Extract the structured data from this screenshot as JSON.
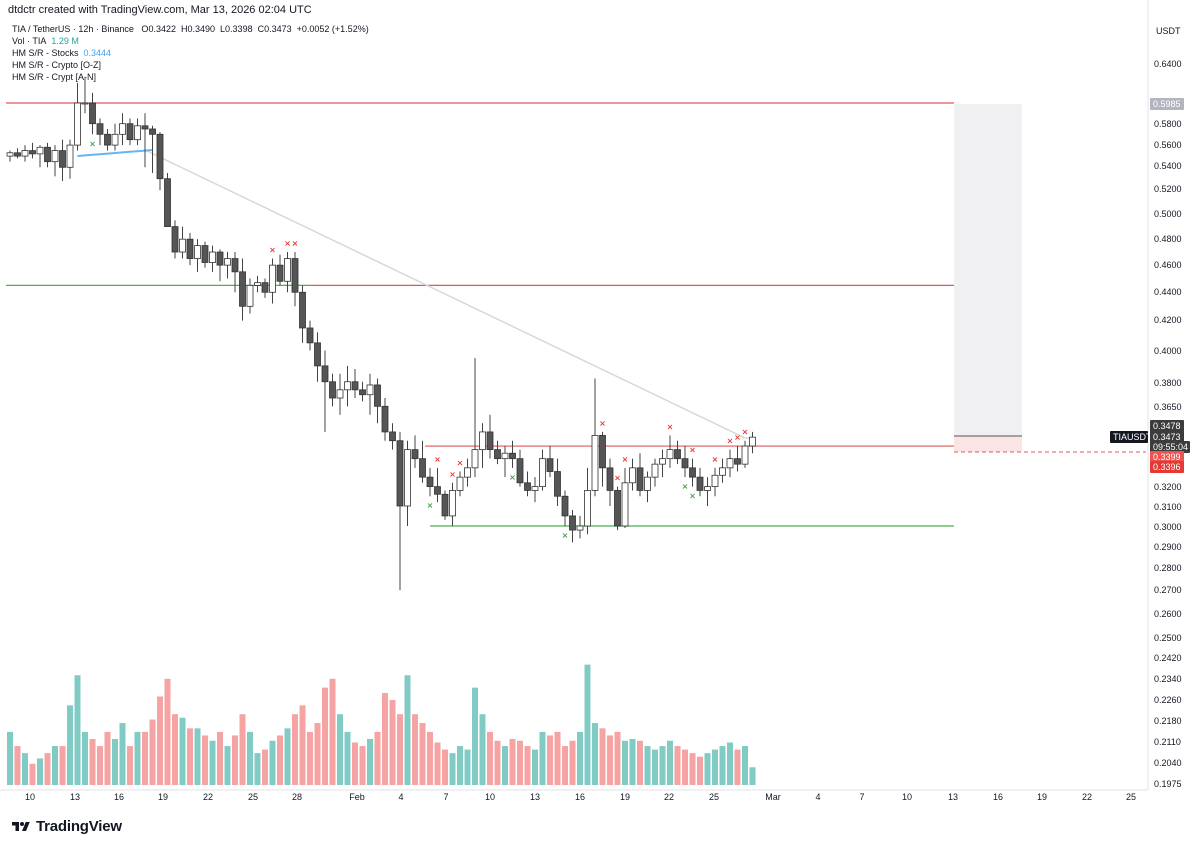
{
  "header": {
    "attribution": "dtdctr created with TradingView.com, Mar 13, 2026 02:04 UTC"
  },
  "legend": {
    "symbol": "TIA / TetherUS · 12h · Binance",
    "o_label": "O",
    "o_value": "0.3422",
    "h_label": "H",
    "h_value": "0.3490",
    "l_label": "L",
    "l_value": "0.3398",
    "c_label": "C",
    "c_value": "0.3473",
    "change": "+0.0052 (+1.52%)",
    "vol_label": "Vol · TIA",
    "vol_value": "1.29 M",
    "sr_stocks_label": "HM S/R - Stocks",
    "sr_stocks_value": "0.3444",
    "sr_crypto_oz": "HM S/R - Crypto [O-Z]",
    "sr_crypt_an": "HM S/R - Crypt [A-N]"
  },
  "axis": {
    "currency": "USDT",
    "price_ticks": [
      "0.6400",
      "0.6000",
      "0.5800",
      "0.5600",
      "0.5400",
      "0.5200",
      "0.5000",
      "0.4800",
      "0.4600",
      "0.4400",
      "0.4200",
      "0.4000",
      "0.3800",
      "0.3650",
      "0.3200",
      "0.3100",
      "0.3000",
      "0.2900",
      "0.2800",
      "0.2700",
      "0.2600",
      "0.2500",
      "0.2420",
      "0.2340",
      "0.2260",
      "0.2180",
      "0.2110",
      "0.2040",
      "0.1975"
    ],
    "time_ticks": [
      "10",
      "13",
      "16",
      "19",
      "22",
      "25",
      "28",
      "Feb",
      "4",
      "7",
      "10",
      "13",
      "16",
      "19",
      "22",
      "25",
      "Mar",
      "4",
      "7",
      "10",
      "13",
      "16",
      "19",
      "22",
      "25"
    ]
  },
  "badges": {
    "top": "0.5985",
    "p1": "0.3478",
    "symbol": "TIAUSDT",
    "last": "0.3473",
    "countdown": "09:55:04",
    "r1": "0.3399",
    "r2": "0.3396"
  },
  "brand": {
    "name": "TradingView",
    "icon": "tradingview-logo-icon"
  },
  "colors": {
    "up": "#ffffff",
    "down": "#555555",
    "wick": "#444444",
    "res": "#e0575a",
    "sup": "#4caf50",
    "vol_up": "#80cbc4",
    "vol_down": "#f5a3a3",
    "ma": "#d8d8d8",
    "blue_line": "#64b5f6",
    "marker_red": "#e53935",
    "marker_green": "#43a047",
    "zone": "#f0f0f3"
  },
  "chart_data": {
    "type": "candlestick",
    "title": "TIA / TetherUS · 12h · Binance",
    "interval": "12h",
    "yscale": "log",
    "ylim": [
      0.1975,
      0.66
    ],
    "xlim": [
      "Jan 9",
      "Mar 27"
    ],
    "volume": {
      "scale": "relative (0-1)",
      "max_label": ""
    },
    "levels": [
      {
        "kind": "resistance",
        "value": 0.6
      },
      {
        "kind": "resistance",
        "value": 0.445
      },
      {
        "kind": "support",
        "value": 0.445
      },
      {
        "kind": "resistance",
        "value": 0.342
      },
      {
        "kind": "support",
        "value": 0.3
      }
    ],
    "candles": [
      {
        "date": "Jan 9",
        "candles": [
          [
            0.55,
            0.555,
            0.545,
            0.553,
            0.3
          ],
          [
            0.553,
            0.557,
            0.548,
            0.55,
            0.22
          ],
          [
            0.55,
            0.56,
            0.545,
            0.555,
            0.18
          ],
          [
            0.555,
            0.562,
            0.548,
            0.552,
            0.12
          ],
          [
            0.552,
            0.56,
            0.54,
            0.558,
            0.15
          ],
          [
            0.558,
            0.562,
            0.54,
            0.545,
            0.18
          ],
          [
            0.545,
            0.56,
            0.532,
            0.555,
            0.22
          ],
          [
            0.555,
            0.565,
            0.528,
            0.54,
            0.22
          ],
          [
            0.54,
            0.565,
            0.53,
            0.56,
            0.45
          ],
          [
            0.56,
            0.62,
            0.555,
            0.6,
            0.62
          ],
          [
            0.6,
            0.625,
            0.59,
            0.6,
            0.3
          ],
          [
            0.6,
            0.61,
            0.57,
            0.58,
            0.26
          ],
          [
            0.58,
            0.585,
            0.56,
            0.57,
            0.22
          ],
          [
            0.57,
            0.575,
            0.555,
            0.56,
            0.3
          ],
          [
            0.56,
            0.58,
            0.555,
            0.57,
            0.26
          ],
          [
            0.57,
            0.59,
            0.56,
            0.58,
            0.35
          ],
          [
            0.58,
            0.585,
            0.56,
            0.565,
            0.22
          ],
          [
            0.565,
            0.585,
            0.56,
            0.578,
            0.3
          ],
          [
            0.578,
            0.59,
            0.54,
            0.575,
            0.3
          ],
          [
            0.575,
            0.578,
            0.535,
            0.57,
            0.37
          ],
          [
            0.57,
            0.572,
            0.52,
            0.53,
            0.5
          ],
          [
            0.53,
            0.535,
            0.49,
            0.49,
            0.6
          ],
          [
            0.49,
            0.495,
            0.465,
            0.47,
            0.4
          ],
          [
            0.47,
            0.49,
            0.465,
            0.48,
            0.38
          ],
          [
            0.48,
            0.485,
            0.46,
            0.465,
            0.32
          ],
          [
            0.465,
            0.48,
            0.455,
            0.475,
            0.32
          ],
          [
            0.475,
            0.478,
            0.458,
            0.462,
            0.28
          ],
          [
            0.462,
            0.475,
            0.455,
            0.47,
            0.25
          ],
          [
            0.47,
            0.472,
            0.448,
            0.46,
            0.3
          ],
          [
            0.46,
            0.47,
            0.45,
            0.465,
            0.22
          ],
          [
            0.465,
            0.47,
            0.44,
            0.455,
            0.28
          ],
          [
            0.455,
            0.465,
            0.42,
            0.43,
            0.4
          ],
          [
            0.43,
            0.45,
            0.425,
            0.445,
            0.3
          ],
          [
            0.445,
            0.452,
            0.44,
            0.447,
            0.18
          ],
          [
            0.447,
            0.45,
            0.436,
            0.44,
            0.2
          ],
          [
            0.44,
            0.465,
            0.432,
            0.46,
            0.25
          ],
          [
            0.46,
            0.468,
            0.445,
            0.448,
            0.28
          ],
          [
            0.448,
            0.47,
            0.44,
            0.465,
            0.32
          ],
          [
            0.465,
            0.47,
            0.43,
            0.44,
            0.4
          ],
          [
            0.44,
            0.445,
            0.405,
            0.415,
            0.45
          ],
          [
            0.415,
            0.42,
            0.4,
            0.405,
            0.3
          ],
          [
            0.405,
            0.412,
            0.38,
            0.39,
            0.35
          ],
          [
            0.39,
            0.4,
            0.35,
            0.38,
            0.55
          ],
          [
            0.38,
            0.385,
            0.365,
            0.37,
            0.6
          ],
          [
            0.37,
            0.385,
            0.36,
            0.375,
            0.4
          ],
          [
            0.375,
            0.39,
            0.365,
            0.38,
            0.3
          ],
          [
            0.38,
            0.388,
            0.37,
            0.375,
            0.24
          ],
          [
            0.375,
            0.38,
            0.368,
            0.372,
            0.22
          ],
          [
            0.372,
            0.385,
            0.36,
            0.378,
            0.26
          ],
          [
            0.378,
            0.382,
            0.355,
            0.365,
            0.3
          ],
          [
            0.365,
            0.37,
            0.345,
            0.35,
            0.52
          ],
          [
            0.35,
            0.355,
            0.34,
            0.345,
            0.48
          ],
          [
            0.345,
            0.35,
            0.27,
            0.31,
            0.4
          ],
          [
            0.31,
            0.345,
            0.3,
            0.34,
            0.62
          ],
          [
            0.34,
            0.348,
            0.33,
            0.335,
            0.4
          ],
          [
            0.335,
            0.345,
            0.322,
            0.325,
            0.35
          ],
          [
            0.325,
            0.33,
            0.315,
            0.32,
            0.3
          ],
          [
            0.32,
            0.33,
            0.312,
            0.316,
            0.24
          ],
          [
            0.316,
            0.318,
            0.303,
            0.305,
            0.2
          ],
          [
            0.305,
            0.322,
            0.3,
            0.318,
            0.18
          ],
          [
            0.318,
            0.328,
            0.315,
            0.325,
            0.22
          ],
          [
            0.325,
            0.335,
            0.32,
            0.33,
            0.2
          ],
          [
            0.33,
            0.395,
            0.325,
            0.34,
            0.55
          ],
          [
            0.34,
            0.355,
            0.33,
            0.35,
            0.4
          ],
          [
            0.35,
            0.36,
            0.335,
            0.34,
            0.3
          ],
          [
            0.34,
            0.345,
            0.332,
            0.335,
            0.25
          ],
          [
            0.335,
            0.342,
            0.325,
            0.338,
            0.22
          ],
          [
            0.338,
            0.345,
            0.33,
            0.335,
            0.26
          ],
          [
            0.335,
            0.34,
            0.32,
            0.322,
            0.25
          ],
          [
            0.322,
            0.328,
            0.315,
            0.318,
            0.22
          ],
          [
            0.318,
            0.325,
            0.312,
            0.32,
            0.2
          ],
          [
            0.32,
            0.34,
            0.318,
            0.335,
            0.3
          ],
          [
            0.335,
            0.342,
            0.325,
            0.328,
            0.28
          ],
          [
            0.328,
            0.335,
            0.31,
            0.315,
            0.3
          ],
          [
            0.315,
            0.318,
            0.3,
            0.305,
            0.22
          ],
          [
            0.305,
            0.308,
            0.292,
            0.298,
            0.25
          ],
          [
            0.298,
            0.305,
            0.294,
            0.3,
            0.3
          ],
          [
            0.3,
            0.33,
            0.296,
            0.318,
            0.68
          ],
          [
            0.318,
            0.382,
            0.315,
            0.348,
            0.35
          ],
          [
            0.348,
            0.35,
            0.32,
            0.33,
            0.32
          ],
          [
            0.33,
            0.335,
            0.31,
            0.318,
            0.28
          ],
          [
            0.318,
            0.32,
            0.298,
            0.3,
            0.3
          ],
          [
            0.3,
            0.33,
            0.299,
            0.322,
            0.25
          ],
          [
            0.322,
            0.335,
            0.318,
            0.33,
            0.26
          ],
          [
            0.33,
            0.338,
            0.315,
            0.318,
            0.25
          ],
          [
            0.318,
            0.328,
            0.312,
            0.325,
            0.22
          ],
          [
            0.325,
            0.335,
            0.32,
            0.332,
            0.2
          ],
          [
            0.332,
            0.34,
            0.325,
            0.335,
            0.22
          ],
          [
            0.335,
            0.348,
            0.33,
            0.34,
            0.25
          ],
          [
            0.34,
            0.345,
            0.332,
            0.335,
            0.22
          ],
          [
            0.335,
            0.342,
            0.325,
            0.33,
            0.2
          ],
          [
            0.33,
            0.335,
            0.32,
            0.325,
            0.18
          ],
          [
            0.325,
            0.33,
            0.315,
            0.318,
            0.16
          ],
          [
            0.318,
            0.325,
            0.31,
            0.32,
            0.18
          ],
          [
            0.32,
            0.33,
            0.315,
            0.326,
            0.2
          ],
          [
            0.326,
            0.335,
            0.322,
            0.33,
            0.22
          ],
          [
            0.33,
            0.34,
            0.325,
            0.335,
            0.24
          ],
          [
            0.335,
            0.342,
            0.328,
            0.332,
            0.2
          ],
          [
            0.332,
            0.345,
            0.33,
            0.342,
            0.22
          ],
          [
            0.342,
            0.35,
            0.338,
            0.347,
            0.1
          ]
        ]
      }
    ]
  }
}
